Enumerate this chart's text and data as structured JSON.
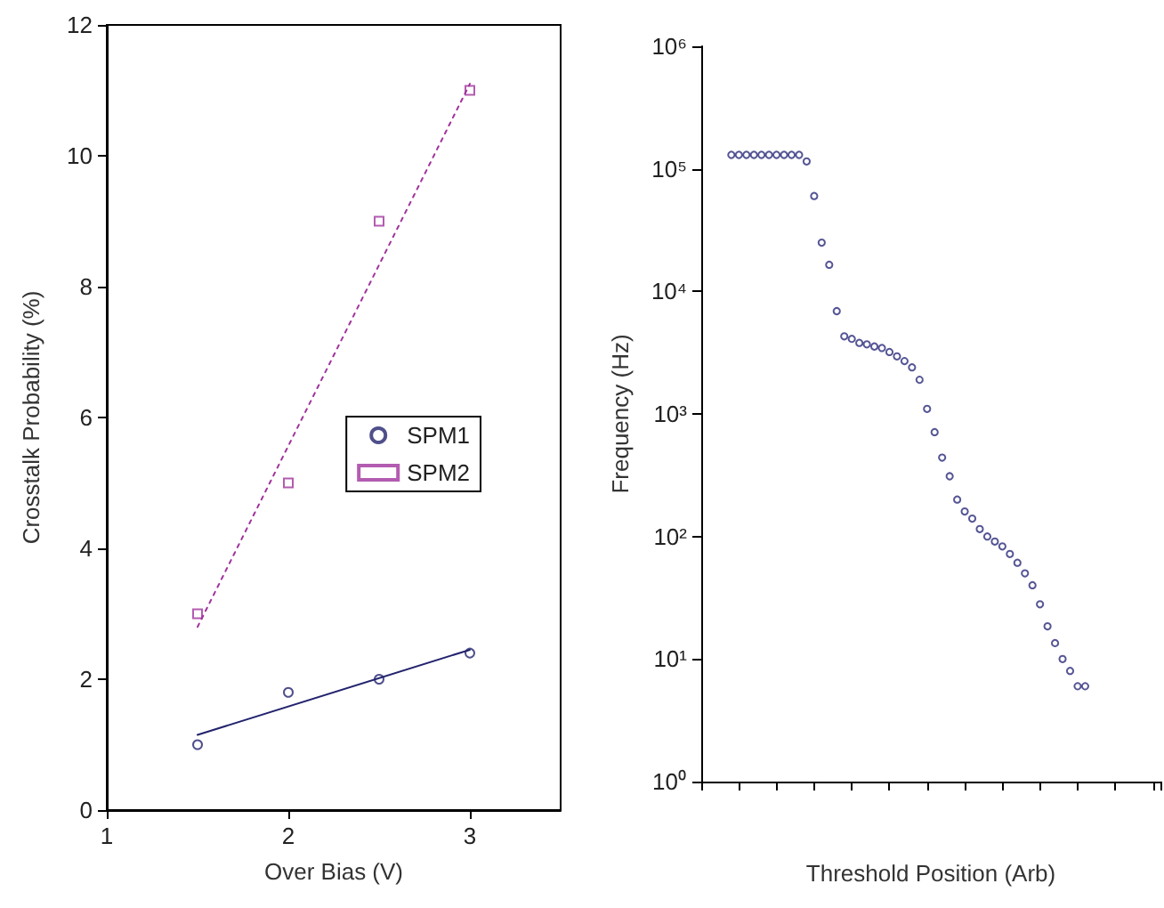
{
  "chart_data": [
    {
      "type": "scatter",
      "xlabel": "Over Bias (V)",
      "ylabel": "Crosstalk Probability (%)",
      "xlim": [
        1,
        3.5
      ],
      "xticks": [
        1,
        2,
        3
      ],
      "ylim": [
        0,
        12
      ],
      "yticks": [
        0,
        2,
        4,
        6,
        8,
        10,
        12
      ],
      "grid": false,
      "legend": "right",
      "series": [
        {
          "name": "SPM1",
          "color": "#23236e",
          "marker": "circle",
          "x": [
            1.5,
            2,
            2.5,
            3
          ],
          "values": [
            1.0,
            1.8,
            2.0,
            2.4
          ]
        },
        {
          "name": "SPM2",
          "color": "#a0339c",
          "marker": "square",
          "x": [
            1.5,
            2,
            2.5,
            3
          ],
          "values": [
            3.0,
            5.0,
            9.0,
            11.0
          ]
        },
        {
          "type": "line",
          "color": "#23236e",
          "line_style": "solid",
          "marker": "none",
          "x": [
            1.5,
            3
          ],
          "values": [
            1.15,
            2.45
          ]
        },
        {
          "type": "line",
          "color": "#a0339c",
          "line_style": "dotted",
          "marker": "none",
          "x": [
            1.5,
            3
          ],
          "values": [
            2.8,
            11.1
          ]
        }
      ]
    },
    {
      "type": "scatter",
      "xlabel": "Threshold Position (Arb)",
      "ylabel": "Frequency (Hz)",
      "log": "y",
      "tick_labels": "y",
      "grid": false,
      "marker": "circle",
      "color": "#2a2a7a",
      "ylim": [
        1,
        1000000
      ],
      "yticks": [
        {
          "value": 1,
          "label": "10⁰"
        },
        {
          "value": 10,
          "label": "10¹"
        },
        {
          "value": 100,
          "label": "10²"
        },
        {
          "value": 1000,
          "label": "10³"
        },
        {
          "value": 10000,
          "label": "10⁴"
        },
        {
          "value": 100000,
          "label": "10⁵"
        },
        {
          "value": 1000000,
          "label": "10⁶"
        }
      ],
      "categories": [
        null,
        null,
        null,
        null,
        null,
        null,
        null,
        null,
        null,
        null,
        null,
        null,
        null,
        null,
        null,
        null,
        null,
        null,
        null,
        null,
        null,
        null,
        null,
        null,
        null,
        null,
        null,
        null,
        null,
        null,
        null,
        null,
        null,
        null,
        null,
        null,
        null,
        null,
        null,
        null,
        null,
        null,
        null,
        null,
        null,
        null,
        null,
        null,
        null,
        null,
        null,
        null,
        null,
        null,
        null,
        null,
        null,
        null,
        null,
        null,
        null,
        null
      ],
      "values": [
        null,
        null,
        null,
        null,
        130000,
        130000,
        130000,
        130000,
        130000,
        130000,
        130000,
        130000,
        130000,
        130000,
        115000,
        60000,
        25000,
        16500,
        6900,
        4300,
        4100,
        3800,
        3700,
        3550,
        3450,
        3200,
        2950,
        2700,
        2400,
        1900,
        1100,
        710,
        440,
        310,
        200,
        160,
        140,
        115,
        100,
        91,
        83,
        72,
        61,
        50,
        40,
        28,
        18.5,
        13.5,
        10,
        8,
        6,
        6,
        null,
        null,
        null,
        null,
        null,
        null,
        null,
        null,
        null,
        null
      ]
    }
  ]
}
